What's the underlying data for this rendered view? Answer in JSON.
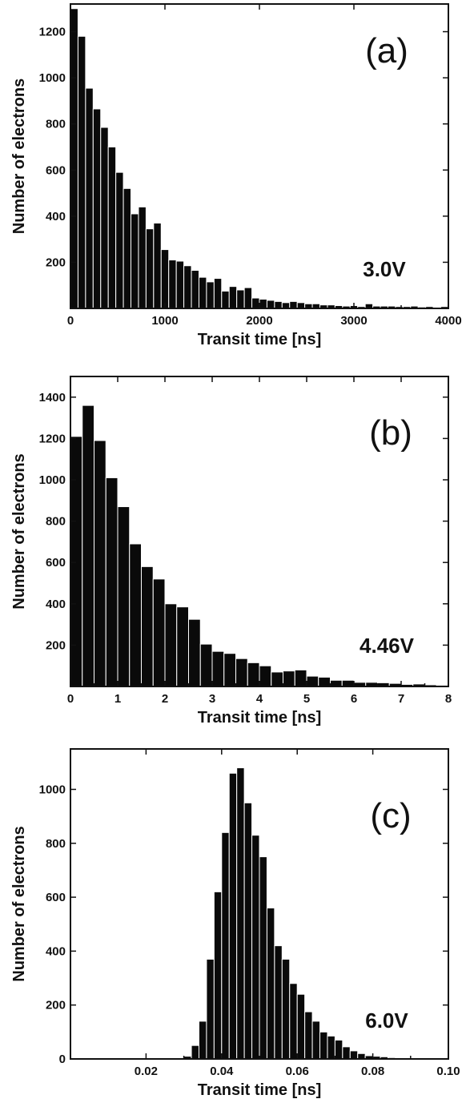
{
  "chart_data": [
    {
      "type": "bar",
      "panel_label": "(a)",
      "annotation": "3.0V",
      "xlabel": "Transit time [ns]",
      "ylabel": "Number of electrons",
      "xlim": [
        0,
        4000
      ],
      "ylim": [
        0,
        1320
      ],
      "xticks": [
        0,
        1000,
        2000,
        3000,
        4000
      ],
      "yticks": [
        200,
        400,
        600,
        800,
        1000,
        1200
      ],
      "bin_width": 80,
      "values": [
        1300,
        1180,
        955,
        865,
        785,
        700,
        590,
        520,
        410,
        440,
        345,
        370,
        255,
        210,
        205,
        185,
        165,
        135,
        115,
        130,
        75,
        95,
        80,
        90,
        45,
        40,
        35,
        30,
        25,
        30,
        25,
        20,
        20,
        15,
        15,
        12,
        10,
        12,
        8,
        20,
        10,
        10,
        10,
        8,
        8,
        10,
        6,
        8,
        5,
        8
      ]
    },
    {
      "type": "bar",
      "panel_label": "(b)",
      "annotation": "4.46V",
      "xlabel": "Transit time [ns]",
      "ylabel": "Number of electrons",
      "xlim": [
        0,
        8
      ],
      "ylim": [
        0,
        1500
      ],
      "xticks": [
        0,
        1,
        2,
        3,
        4,
        5,
        6,
        7,
        8
      ],
      "yticks": [
        200,
        400,
        600,
        800,
        1000,
        1200,
        1400
      ],
      "bin_width": 0.25,
      "values": [
        1210,
        1360,
        1190,
        1010,
        870,
        690,
        580,
        520,
        400,
        385,
        325,
        205,
        170,
        160,
        135,
        115,
        100,
        70,
        75,
        80,
        50,
        45,
        30,
        30,
        20,
        20,
        18,
        15,
        10,
        12,
        8,
        6
      ]
    },
    {
      "type": "bar",
      "panel_label": "(c)",
      "annotation": "6.0V",
      "xlabel": "Transit time [ns]",
      "ylabel": "Number of electrons",
      "xlim": [
        0,
        0.1
      ],
      "ylim": [
        0,
        1150
      ],
      "xticks": [
        0.02,
        0.04,
        0.06,
        0.08,
        0.1
      ],
      "xtick_labels": [
        "0.02",
        "0.04",
        "0.06",
        "0.08",
        "0.10"
      ],
      "yticks": [
        0,
        200,
        400,
        600,
        800,
        1000
      ],
      "bin_start": 0.03,
      "bin_width": 0.002,
      "values": [
        10,
        50,
        140,
        370,
        620,
        840,
        1060,
        1080,
        950,
        830,
        750,
        560,
        420,
        370,
        280,
        240,
        175,
        140,
        100,
        85,
        70,
        45,
        30,
        20,
        12,
        10,
        8,
        5,
        4,
        3
      ]
    }
  ]
}
